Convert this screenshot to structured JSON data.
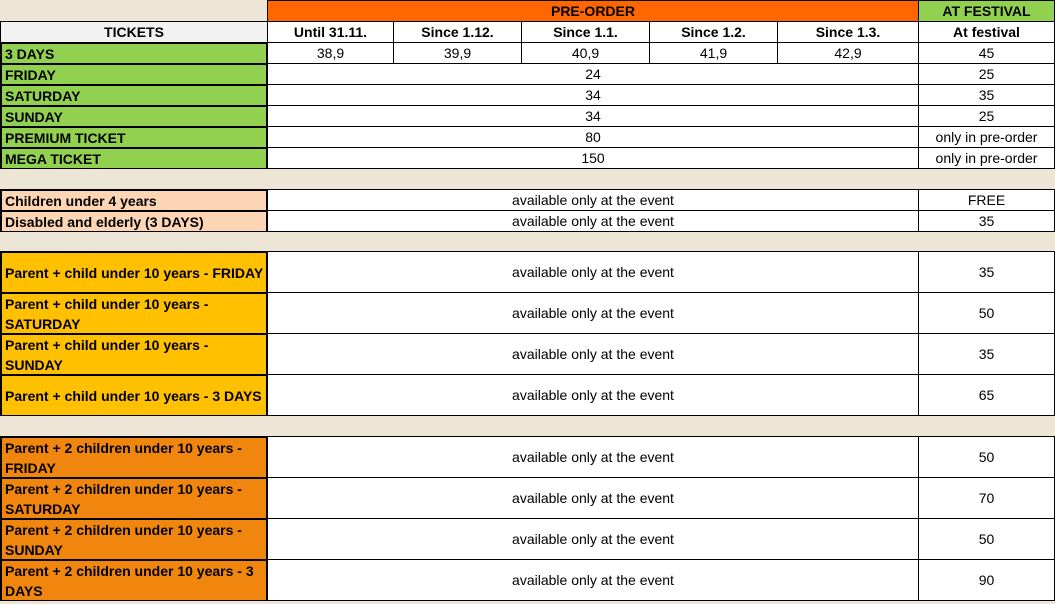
{
  "header": {
    "tickets": "TICKETS",
    "preorder": "PRE-ORDER",
    "at_festival": "AT FESTIVAL",
    "columns": [
      "Until 31.11.",
      "Since 1.12.",
      "Since 1.1.",
      "Since 1.2.",
      "Since 1.3.",
      "At festival"
    ]
  },
  "colors": {
    "background": "#EDE5D5",
    "preorder_header": "#FF6600",
    "festival_header": "#92D050",
    "tickets_header": "#F2F2F2"
  },
  "groups": [
    {
      "color": "#92D050",
      "rows": [
        {
          "label": "3 DAYS",
          "preorder": [
            "38,9",
            "39,9",
            "40,9",
            "41,9",
            "42,9"
          ],
          "festival": "45"
        },
        {
          "label": "FRIDAY",
          "preorder": "24",
          "festival": "25"
        },
        {
          "label": "SATURDAY",
          "preorder": "34",
          "festival": "35"
        },
        {
          "label": "SUNDAY",
          "preorder": "34",
          "festival": "25"
        },
        {
          "label": "PREMIUM TICKET",
          "preorder": "80",
          "festival": "only in pre-order"
        },
        {
          "label": "MEGA TICKET",
          "preorder": "150",
          "festival": "only in pre-order"
        }
      ]
    },
    {
      "color": "#FCD5B4",
      "rows": [
        {
          "label": "Children under 4 years",
          "preorder": "available only at the event",
          "festival": "FREE"
        },
        {
          "label": "Disabled and elderly (3 DAYS)",
          "preorder": "available only at the event",
          "festival": "35"
        }
      ]
    },
    {
      "color": "#FFC000",
      "rows": [
        {
          "label": "Parent + child under 10 years - FRIDAY",
          "preorder": "available only at the event",
          "festival": "35"
        },
        {
          "label": "Parent + child under 10 years - SATURDAY",
          "preorder": "available only at the event",
          "festival": "50"
        },
        {
          "label": "Parent + child under 10 years - SUNDAY",
          "preorder": "available only at the event",
          "festival": "35"
        },
        {
          "label": "Parent + child under 10 years - 3 DAYS",
          "preorder": "available only at the event",
          "festival": "65"
        }
      ]
    },
    {
      "color": "#F0860E",
      "rows": [
        {
          "label": "Parent + 2 children under 10 years - FRIDAY",
          "preorder": "available only at the event",
          "festival": "50"
        },
        {
          "label": "Parent + 2 children under 10 years - SATURDAY",
          "preorder": "available only at the event",
          "festival": "70"
        },
        {
          "label": "Parent + 2 children under 10 years - SUNDAY",
          "preorder": "available only at the event",
          "festival": "50"
        },
        {
          "label": "Parent + 2 children under 10 years - 3 DAYS",
          "preorder": "available only at the event",
          "festival": "90"
        }
      ]
    }
  ]
}
